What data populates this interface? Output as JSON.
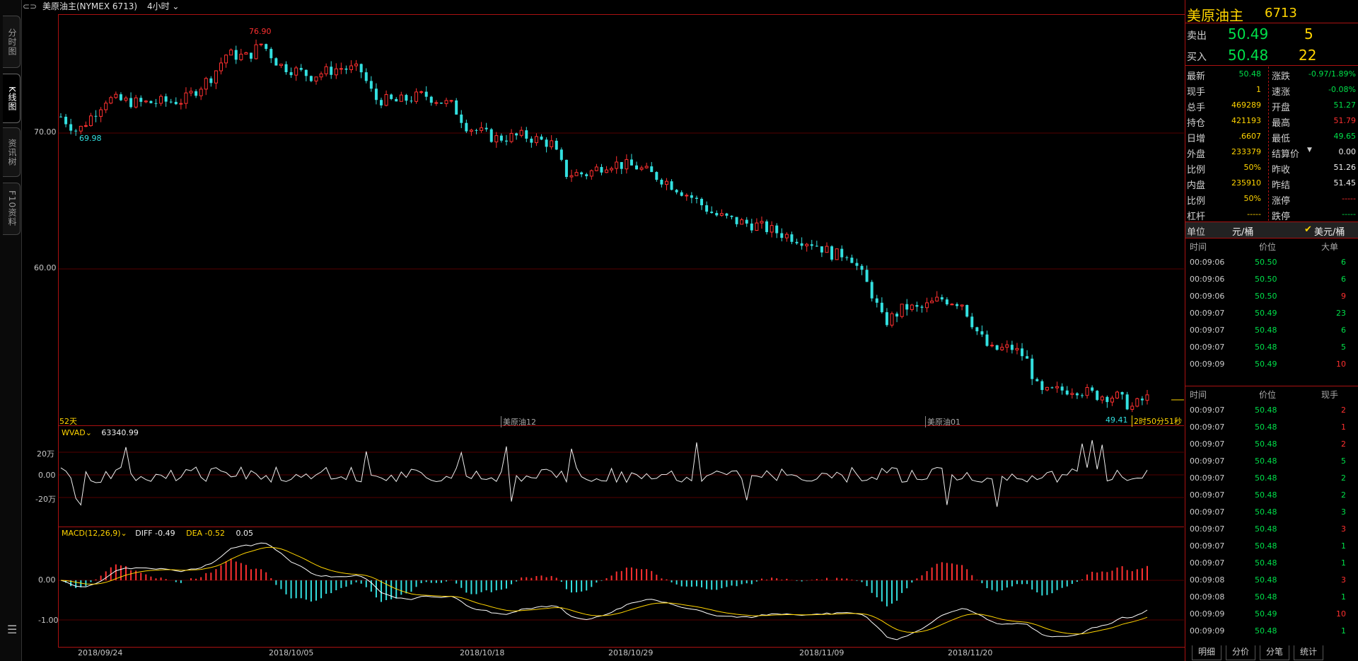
{
  "topbar": {
    "title": "美原油主(NYMEX 6713)",
    "period": "4小时"
  },
  "side_tabs": [
    "分时图",
    "K线图",
    "资讯树",
    "F10资料"
  ],
  "chart": {
    "price_labels": [
      "70.00",
      "60.00"
    ],
    "high_label": "76.90",
    "low_label": "69.98",
    "last_low_label": "49.41",
    "days_label": "52天",
    "contract_labels": [
      "美原油12",
      "美原油01"
    ],
    "countdown": "2时50分51秒",
    "dates": [
      "2018/09/24",
      "2018/10/05",
      "2018/10/18",
      "2018/10/29",
      "2018/11/09",
      "2018/11/20"
    ]
  },
  "wvad": {
    "name": "WVAD",
    "value": "63340.99",
    "axis": [
      "20万",
      "0.00",
      "-20万"
    ]
  },
  "macd": {
    "name": "MACD(12,26,9)",
    "diff": "DIFF -0.49",
    "dea": "DEA -0.52",
    "macd": "0.05",
    "axis": [
      "0.00",
      "-1.00"
    ]
  },
  "quote": {
    "name": "美原油主",
    "code": "6713",
    "sell_label": "卖出",
    "sell_price": "50.49",
    "sell_vol": "5",
    "buy_label": "买入",
    "buy_price": "50.48",
    "buy_vol": "22",
    "rows": [
      {
        "l1": "最新",
        "v1": "50.48",
        "c1": "grn",
        "l2": "涨跌",
        "v2": "-0.97/1.89%",
        "c2": "grn"
      },
      {
        "l1": "现手",
        "v1": "1",
        "c1": "yel",
        "l2": "速涨",
        "v2": "-0.08%",
        "c2": "grn"
      },
      {
        "l1": "总手",
        "v1": "469289",
        "c1": "yel",
        "l2": "开盘",
        "v2": "51.27",
        "c2": "grn"
      },
      {
        "l1": "持仓",
        "v1": "421193",
        "c1": "yel",
        "l2": "最高",
        "v2": "51.79",
        "c2": "red"
      },
      {
        "l1": "日增",
        "v1": ".6607",
        "c1": "yel",
        "l2": "最低",
        "v2": "49.65",
        "c2": "grn"
      },
      {
        "l1": "外盘",
        "v1": "233379",
        "c1": "yel",
        "l2": "结算价",
        "v2": "0.00",
        "c2": "wht"
      },
      {
        "l1": "比例",
        "v1": "50%",
        "c1": "yel",
        "l2": "昨收",
        "v2": "51.26",
        "c2": "wht"
      },
      {
        "l1": "内盘",
        "v1": "235910",
        "c1": "yel",
        "l2": "昨结",
        "v2": "51.45",
        "c2": "wht"
      },
      {
        "l1": "比例",
        "v1": "50%",
        "c1": "yel",
        "l2": "涨停",
        "v2": "-----",
        "c2": "red"
      },
      {
        "l1": "杠杆",
        "v1": "-----",
        "c1": "yel",
        "l2": "跌停",
        "v2": "-----",
        "c2": "grn"
      }
    ],
    "unit_label": "单位",
    "unit_opt1": "元/桶",
    "unit_opt2": "美元/桶"
  },
  "trades1": {
    "headers": [
      "时间",
      "价位",
      "大单"
    ],
    "rows": [
      {
        "t": "00:09:06",
        "p": "50.50",
        "v": "6",
        "c": "grn"
      },
      {
        "t": "00:09:06",
        "p": "50.50",
        "v": "6",
        "c": "grn"
      },
      {
        "t": "00:09:06",
        "p": "50.50",
        "v": "9",
        "c": "red"
      },
      {
        "t": "00:09:07",
        "p": "50.49",
        "v": "23",
        "c": "grn"
      },
      {
        "t": "00:09:07",
        "p": "50.48",
        "v": "6",
        "c": "grn"
      },
      {
        "t": "00:09:07",
        "p": "50.48",
        "v": "5",
        "c": "grn"
      },
      {
        "t": "00:09:09",
        "p": "50.49",
        "v": "10",
        "c": "red"
      }
    ]
  },
  "trades2": {
    "headers": [
      "时间",
      "价位",
      "现手"
    ],
    "rows": [
      {
        "t": "00:09:07",
        "p": "50.48",
        "v": "2",
        "c": "red"
      },
      {
        "t": "00:09:07",
        "p": "50.48",
        "v": "1",
        "c": "red"
      },
      {
        "t": "00:09:07",
        "p": "50.48",
        "v": "2",
        "c": "red"
      },
      {
        "t": "00:09:07",
        "p": "50.48",
        "v": "5",
        "c": "grn"
      },
      {
        "t": "00:09:07",
        "p": "50.48",
        "v": "2",
        "c": "grn"
      },
      {
        "t": "00:09:07",
        "p": "50.48",
        "v": "2",
        "c": "grn"
      },
      {
        "t": "00:09:07",
        "p": "50.48",
        "v": "3",
        "c": "grn"
      },
      {
        "t": "00:09:07",
        "p": "50.48",
        "v": "3",
        "c": "red"
      },
      {
        "t": "00:09:07",
        "p": "50.48",
        "v": "1",
        "c": "grn"
      },
      {
        "t": "00:09:07",
        "p": "50.48",
        "v": "1",
        "c": "grn"
      },
      {
        "t": "00:09:08",
        "p": "50.48",
        "v": "3",
        "c": "red"
      },
      {
        "t": "00:09:08",
        "p": "50.48",
        "v": "1",
        "c": "grn"
      },
      {
        "t": "00:09:09",
        "p": "50.49",
        "v": "10",
        "c": "red"
      },
      {
        "t": "00:09:09",
        "p": "50.48",
        "v": "1",
        "c": "grn"
      }
    ]
  },
  "bottom_tabs": [
    "明细",
    "分价",
    "分笔",
    "统计"
  ],
  "colors": {
    "up": "#ff3030",
    "down": "#33e0e0",
    "frame": "#aa1111",
    "yellow": "#ffd400",
    "green": "#00e04a"
  }
}
